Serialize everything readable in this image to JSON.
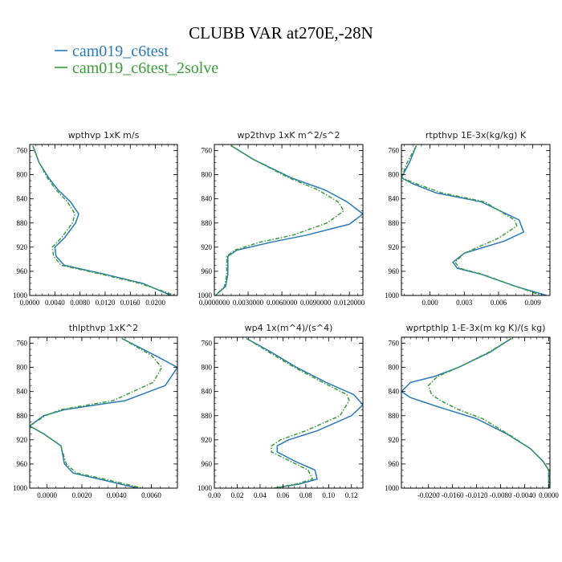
{
  "title": "CLUBB VAR at270E,-28N",
  "colors": {
    "c6test": "#2a7ab8",
    "c6test_2solve": "#3a9c3a"
  },
  "legend": [
    {
      "label": "cam019_c6test",
      "color": "#2a7ab8"
    },
    {
      "label": "cam019_c6test_2solve",
      "color": "#3a9c3a"
    }
  ],
  "chart_data": [
    {
      "type": "line",
      "title": "wpthvp   1xK m/s",
      "y_ticks": [
        "760",
        "800",
        "840",
        "880",
        "920",
        "960",
        "1000"
      ],
      "ylim": [
        1000,
        750
      ],
      "x_ticks": [
        "0.0000",
        "0.0040",
        "0.0080",
        "0.0120",
        "0.0160",
        "0.0200"
      ],
      "x_tick_values": [
        0.0,
        0.004,
        0.008,
        0.012,
        0.016,
        0.02
      ],
      "xlim": [
        0.0,
        0.0235
      ],
      "series": [
        {
          "name": "cam019_c6test",
          "x": [
            0.0005,
            0.0015,
            0.003,
            0.0045,
            0.0065,
            0.0078,
            0.0073,
            0.0055,
            0.004,
            0.0042,
            0.0055,
            0.012,
            0.018,
            0.0225
          ],
          "y": [
            752,
            780,
            805,
            825,
            845,
            865,
            880,
            905,
            920,
            935,
            950,
            965,
            980,
            1000
          ]
        },
        {
          "name": "cam019_c6test_2solve",
          "x": [
            0.0005,
            0.0015,
            0.0028,
            0.0042,
            0.006,
            0.0072,
            0.0068,
            0.005,
            0.0036,
            0.0038,
            0.005,
            0.0115,
            0.0175,
            0.0232
          ],
          "y": [
            752,
            780,
            805,
            825,
            845,
            865,
            880,
            905,
            920,
            935,
            950,
            965,
            980,
            1000
          ]
        }
      ]
    },
    {
      "type": "line",
      "title": "wp2thvp   1xK m^2/s^2",
      "y_ticks": [
        "760",
        "800",
        "840",
        "880",
        "920",
        "960",
        "1000"
      ],
      "ylim": [
        1000,
        750
      ],
      "x_ticks": [
        "0.0000000",
        "0.0030000",
        "0.0060000",
        "0.0090000",
        "0.0120000"
      ],
      "x_tick_values": [
        0.0,
        0.003,
        0.006,
        0.009,
        0.012
      ],
      "xlim": [
        0.0,
        0.0132
      ],
      "series": [
        {
          "name": "cam019_c6test",
          "x": [
            0.0015,
            0.0035,
            0.0068,
            0.0098,
            0.0118,
            0.0132,
            0.012,
            0.0082,
            0.005,
            0.002,
            0.0012,
            0.0012,
            0.0012,
            0.001,
            0.0001
          ],
          "y": [
            752,
            775,
            805,
            825,
            845,
            865,
            882,
            900,
            912,
            925,
            935,
            950,
            965,
            985,
            1000
          ]
        },
        {
          "name": "cam019_c6test_2solve",
          "x": [
            0.0015,
            0.0035,
            0.0066,
            0.0092,
            0.011,
            0.0115,
            0.01,
            0.007,
            0.004,
            0.0018,
            0.0011,
            0.0011,
            0.0011,
            0.0009,
            0.0001
          ],
          "y": [
            752,
            775,
            805,
            825,
            845,
            860,
            880,
            900,
            912,
            925,
            935,
            950,
            965,
            985,
            1000
          ]
        }
      ]
    },
    {
      "type": "line",
      "title": "rtpthvp   1E-3x(kg/kg) K",
      "y_ticks": [
        "760",
        "800",
        "840",
        "880",
        "920",
        "960",
        "1000"
      ],
      "ylim": [
        1000,
        750
      ],
      "x_ticks": [
        "0.000",
        "0.003",
        "0.006",
        "0.009"
      ],
      "x_tick_values": [
        0.0,
        0.003,
        0.006,
        0.009
      ],
      "xlim": [
        -0.0025,
        0.0105
      ],
      "series": [
        {
          "name": "cam019_c6test",
          "x": [
            -0.0012,
            -0.0018,
            -0.0025,
            -0.0015,
            0.0005,
            0.0045,
            0.0078,
            0.0082,
            0.0065,
            0.003,
            0.002,
            0.0024,
            0.0045,
            0.0075,
            0.0102
          ],
          "y": [
            752,
            780,
            805,
            815,
            830,
            845,
            875,
            895,
            910,
            930,
            945,
            955,
            965,
            985,
            1000
          ]
        },
        {
          "name": "cam019_c6test_2solve",
          "x": [
            -0.0012,
            -0.002,
            -0.0025,
            -0.0012,
            0.001,
            0.0048,
            0.0074,
            0.0076,
            0.006,
            0.003,
            0.0022,
            0.0026,
            0.0046,
            0.0075,
            0.0098
          ],
          "y": [
            752,
            780,
            805,
            815,
            830,
            845,
            875,
            885,
            905,
            930,
            945,
            955,
            965,
            985,
            1000
          ]
        }
      ]
    },
    {
      "type": "line",
      "title": "thlpthvp   1xK^2",
      "y_ticks": [
        "760",
        "800",
        "840",
        "880",
        "920",
        "960",
        "1000"
      ],
      "ylim": [
        1000,
        750
      ],
      "x_ticks": [
        "0.0000",
        "0.0020",
        "0.0040",
        "0.0060"
      ],
      "x_tick_values": [
        0.0,
        0.002,
        0.004,
        0.006
      ],
      "xlim": [
        -0.001,
        0.0075
      ],
      "series": [
        {
          "name": "cam019_c6test",
          "x": [
            0.0043,
            0.0062,
            0.0075,
            0.0068,
            0.0045,
            0.001,
            -0.0002,
            -0.001,
            -0.0002,
            0.0008,
            0.001,
            0.0015,
            0.003,
            0.0052
          ],
          "y": [
            752,
            780,
            800,
            830,
            855,
            870,
            880,
            897,
            910,
            930,
            960,
            975,
            985,
            1000
          ]
        },
        {
          "name": "cam019_c6test_2solve",
          "x": [
            0.0043,
            0.006,
            0.0066,
            0.0061,
            0.0038,
            0.0008,
            -0.0001,
            -0.001,
            -0.0002,
            0.0008,
            0.0011,
            0.0017,
            0.0033,
            0.0055
          ],
          "y": [
            752,
            780,
            800,
            825,
            855,
            870,
            880,
            897,
            910,
            930,
            960,
            975,
            985,
            1000
          ]
        }
      ]
    },
    {
      "type": "line",
      "title": "wp4   1x(m^4)/(s^4)",
      "y_ticks": [
        "760",
        "800",
        "840",
        "880",
        "920",
        "960",
        "1000"
      ],
      "ylim": [
        1000,
        750
      ],
      "x_ticks": [
        "0.00",
        "0.02",
        "0.04",
        "0.06",
        "0.08",
        "0.10",
        "0.12"
      ],
      "x_tick_values": [
        0.0,
        0.02,
        0.04,
        0.06,
        0.08,
        0.1,
        0.12
      ],
      "xlim": [
        0.0,
        0.13
      ],
      "series": [
        {
          "name": "cam019_c6test",
          "x": [
            0.028,
            0.05,
            0.072,
            0.098,
            0.122,
            0.13,
            0.12,
            0.09,
            0.065,
            0.055,
            0.055,
            0.07,
            0.088,
            0.09,
            0.075,
            0.052
          ],
          "y": [
            752,
            775,
            800,
            825,
            845,
            862,
            880,
            905,
            920,
            930,
            940,
            955,
            970,
            985,
            993,
            1000
          ]
        },
        {
          "name": "cam019_c6test_2solve",
          "x": [
            0.028,
            0.048,
            0.07,
            0.095,
            0.116,
            0.118,
            0.11,
            0.08,
            0.058,
            0.05,
            0.05,
            0.066,
            0.082,
            0.086,
            0.072,
            0.052
          ],
          "y": [
            752,
            775,
            800,
            825,
            845,
            855,
            880,
            905,
            920,
            930,
            940,
            955,
            970,
            985,
            993,
            1000
          ]
        }
      ]
    },
    {
      "type": "line",
      "title": "wprtpthlp   1-E-3x(m kg K)/(s kg)",
      "y_ticks": [
        "760",
        "800",
        "840",
        "880",
        "920",
        "960",
        "1000"
      ],
      "ylim": [
        1000,
        750
      ],
      "x_ticks": [
        "-0.0200",
        "-0.0160",
        "-0.0120",
        "-0.0080",
        "-0.0040",
        "0.0000"
      ],
      "x_tick_values": [
        -0.02,
        -0.016,
        -0.012,
        -0.008,
        -0.004,
        0.0
      ],
      "xlim": [
        -0.0245,
        0.0002
      ],
      "series": [
        {
          "name": "cam019_c6test",
          "x": [
            -0.0062,
            -0.0098,
            -0.015,
            -0.019,
            -0.023,
            -0.0245,
            -0.023,
            -0.0185,
            -0.012,
            -0.007,
            -0.003,
            -0.001,
            0.0,
            0.0
          ],
          "y": [
            752,
            775,
            800,
            815,
            825,
            840,
            850,
            865,
            885,
            910,
            935,
            955,
            970,
            1000
          ]
        },
        {
          "name": "cam019_c6test_2solve",
          "x": [
            -0.0062,
            -0.01,
            -0.015,
            -0.0185,
            -0.02,
            -0.0195,
            -0.018,
            -0.015,
            -0.011,
            -0.0068,
            -0.003,
            -0.001,
            0.0,
            0.0
          ],
          "y": [
            752,
            775,
            800,
            815,
            830,
            845,
            855,
            870,
            885,
            910,
            935,
            955,
            970,
            1000
          ]
        }
      ]
    }
  ]
}
